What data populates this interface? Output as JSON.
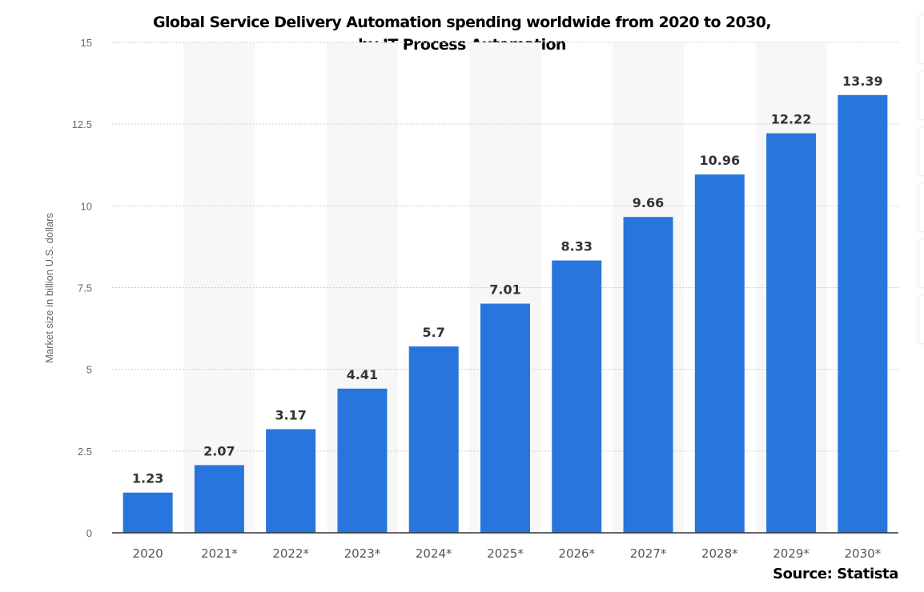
{
  "chart_data": {
    "type": "bar",
    "title_line1": "Global Service Delivery Automation spending worldwide from 2020 to 2030,",
    "title_line2": "by IT Process Automation",
    "xlabel": "",
    "ylabel": "Market size in billion U.S. dollars",
    "categories": [
      "2020",
      "2021*",
      "2022*",
      "2023*",
      "2024*",
      "2025*",
      "2026*",
      "2027*",
      "2028*",
      "2029*",
      "2030*"
    ],
    "values": [
      1.23,
      2.07,
      3.17,
      4.41,
      5.7,
      7.01,
      8.33,
      9.66,
      10.96,
      12.22,
      13.39
    ],
    "data_labels": [
      "1.23",
      "2.07",
      "3.17",
      "4.41",
      "5.7",
      "7.01",
      "8.33",
      "9.66",
      "10.96",
      "12.22",
      "13.39"
    ],
    "ylim": [
      0,
      15
    ],
    "yticks": [
      "0",
      "2.5",
      "5",
      "7.5",
      "10",
      "12.5",
      "15"
    ],
    "grid": true,
    "bar_color": "#2876dd",
    "source": "Source: Statista"
  }
}
